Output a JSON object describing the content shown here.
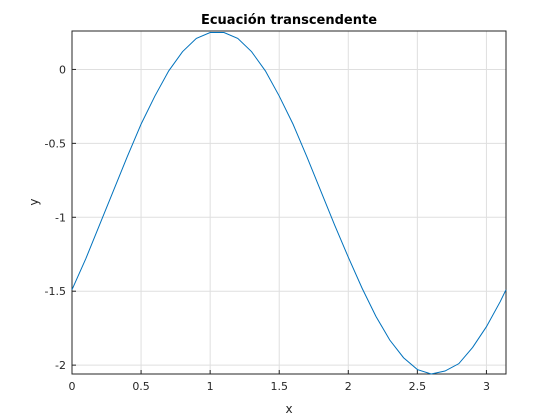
{
  "chart_data": {
    "type": "line",
    "title": "Ecuación transcendente",
    "x_label": "x",
    "y_label": "y",
    "x": [
      0,
      0.1,
      0.2,
      0.3,
      0.4,
      0.5,
      0.6,
      0.7,
      0.8,
      0.9,
      1.0,
      1.1,
      1.2,
      1.3,
      1.4,
      1.5,
      1.6,
      1.7,
      1.8,
      1.9,
      2.0,
      2.1,
      2.2,
      2.3,
      2.4,
      2.5,
      2.6,
      2.7,
      2.8,
      2.9,
      3.0,
      3.1,
      3.1416
    ],
    "series": [
      {
        "color": "#0072bd",
        "values": [
          -1.49,
          -1.28,
          -1.05,
          -0.82,
          -0.59,
          -0.37,
          -0.18,
          -0.01,
          0.12,
          0.21,
          0.25,
          0.25,
          0.21,
          0.12,
          -0.01,
          -0.18,
          -0.37,
          -0.59,
          -0.82,
          -1.05,
          -1.27,
          -1.48,
          -1.67,
          -1.83,
          -1.95,
          -2.03,
          -2.06,
          -2.04,
          -1.99,
          -1.88,
          -1.74,
          -1.57,
          -1.49
        ]
      }
    ],
    "xlim": [
      0,
      3.1416
    ],
    "ylim": [
      -2.06,
      0.26
    ],
    "xticks": [
      0,
      0.5,
      1,
      1.5,
      2,
      2.5,
      3
    ],
    "yticks": [
      -2,
      -1.5,
      -1,
      -0.5,
      0
    ],
    "grid": true
  }
}
